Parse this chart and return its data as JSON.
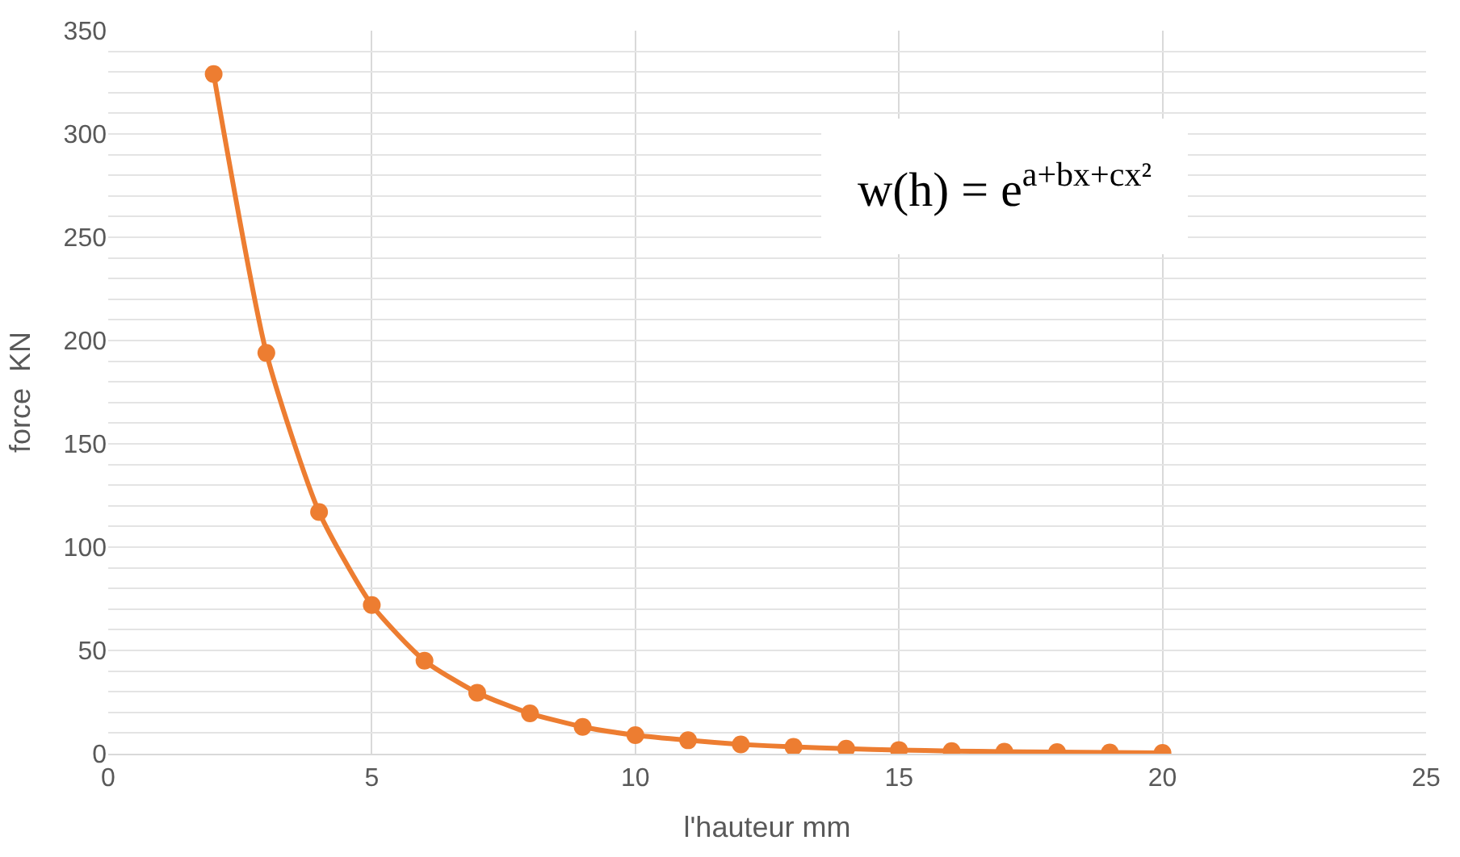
{
  "chart_data": {
    "type": "line",
    "xlabel": "l'hauteur mm",
    "ylabel": "force  KN",
    "x": [
      2,
      3,
      4,
      5,
      6,
      7,
      8,
      9,
      10,
      11,
      12,
      13,
      14,
      15,
      16,
      17,
      18,
      19,
      20
    ],
    "series": [
      {
        "color": "#ed7d31",
        "values": [
          329,
          194,
          117,
          72,
          45,
          29.5,
          19.5,
          13,
          9,
          6.5,
          4.5,
          3.3,
          2.4,
          1.8,
          1.3,
          1,
          0.8,
          0.6,
          0.4
        ]
      }
    ],
    "xlim": [
      0,
      25
    ],
    "xticks": [
      0,
      5,
      10,
      15,
      20,
      25
    ],
    "ylim": [
      0,
      350
    ],
    "yticks": [
      0,
      {
        "value": 10,
        "label": null
      },
      {
        "value": 20,
        "label": null
      },
      {
        "value": 30,
        "label": null
      },
      {
        "value": 40,
        "label": null
      },
      50,
      {
        "value": 60,
        "label": null
      },
      {
        "value": 70,
        "label": null
      },
      {
        "value": 80,
        "label": null
      },
      {
        "value": 90,
        "label": null
      },
      100,
      {
        "value": 110,
        "label": null
      },
      {
        "value": 120,
        "label": null
      },
      {
        "value": 130,
        "label": null
      },
      {
        "value": 140,
        "label": null
      },
      150,
      {
        "value": 160,
        "label": null
      },
      {
        "value": 170,
        "label": null
      },
      {
        "value": 180,
        "label": null
      },
      {
        "value": 190,
        "label": null
      },
      200,
      {
        "value": 210,
        "label": null
      },
      {
        "value": 220,
        "label": null
      },
      {
        "value": 230,
        "label": null
      },
      {
        "value": 240,
        "label": null
      },
      250,
      {
        "value": 260,
        "label": null
      },
      {
        "value": 270,
        "label": null
      },
      {
        "value": 280,
        "label": null
      },
      {
        "value": 290,
        "label": null
      },
      300,
      {
        "value": 310,
        "label": null
      },
      {
        "value": 320,
        "label": null
      },
      {
        "value": 330,
        "label": null
      },
      {
        "value": 340,
        "label": null
      },
      350
    ],
    "grid": true,
    "marker": "circle",
    "line_style": "solid",
    "annotations": [
      "w(h) = e$^{a+bx+cx²}$"
    ]
  }
}
